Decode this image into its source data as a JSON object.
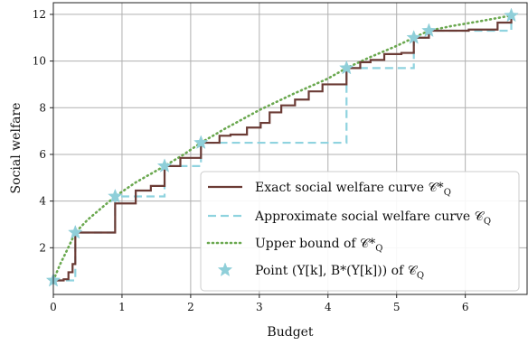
{
  "chart_data": {
    "type": "line",
    "xlabel": "Budget",
    "ylabel": "Social welfare",
    "xlim": [
      0,
      6.9
    ],
    "ylim": [
      0,
      12.5
    ],
    "xticks": [
      0,
      1,
      2,
      3,
      4,
      5,
      6
    ],
    "yticks": [
      2,
      4,
      6,
      8,
      10,
      12
    ],
    "grid": true,
    "legend_position": "bottom-right",
    "series": [
      {
        "name": "Exact social welfare curve 𝒞*",
        "sub": "Q",
        "style": "solid-step",
        "color": "#6b3b35",
        "x": [
          0,
          0.15,
          0.22,
          0.28,
          0.32,
          0.9,
          1.2,
          1.42,
          1.62,
          1.85,
          2.15,
          2.42,
          2.58,
          2.82,
          3.02,
          3.15,
          3.32,
          3.52,
          3.72,
          3.92,
          4.27,
          4.47,
          4.62,
          4.82,
          5.07,
          5.25,
          5.47,
          6.05,
          6.47,
          6.67
        ],
        "y": [
          0.6,
          0.65,
          0.95,
          1.3,
          2.65,
          3.9,
          4.45,
          4.65,
          5.5,
          5.85,
          6.5,
          6.8,
          6.85,
          7.15,
          7.35,
          7.8,
          8.1,
          8.35,
          8.7,
          9.0,
          9.7,
          9.95,
          10.05,
          10.3,
          10.35,
          11.0,
          11.3,
          11.35,
          11.65,
          11.95
        ]
      },
      {
        "name": "Approximate social welfare curve 𝒞",
        "sub": "Q",
        "style": "dashed-step",
        "color": "#8fd3df",
        "x": [
          0,
          0.32,
          0.9,
          1.62,
          2.15,
          4.27,
          5.25,
          5.47,
          6.67
        ],
        "y": [
          0.6,
          2.65,
          4.2,
          5.5,
          6.5,
          9.7,
          11.0,
          11.3,
          11.95
        ]
      },
      {
        "name": "Upper bound of 𝒞*",
        "sub": "Q",
        "style": "dotted",
        "color": "#6aa84f",
        "x": [
          0,
          0.1,
          0.2,
          0.32,
          0.5,
          0.7,
          0.9,
          1.2,
          1.5,
          1.62,
          1.9,
          2.15,
          2.5,
          3.0,
          3.5,
          4.0,
          4.27,
          4.6,
          5.0,
          5.25,
          5.47,
          5.8,
          6.2,
          6.67
        ],
        "y": [
          0.6,
          1.3,
          1.9,
          2.65,
          3.2,
          3.7,
          4.2,
          4.8,
          5.3,
          5.5,
          6.0,
          6.5,
          7.1,
          7.9,
          8.6,
          9.25,
          9.7,
          10.15,
          10.65,
          11.0,
          11.3,
          11.5,
          11.7,
          11.95
        ]
      },
      {
        "name": "Point (Y[k], B*(Y[k])) of 𝒞",
        "sub": "Q",
        "style": "star-marker",
        "color": "#8fcfd9",
        "x": [
          0,
          0.32,
          0.9,
          1.62,
          2.15,
          4.27,
          5.25,
          5.47,
          6.67
        ],
        "y": [
          0.6,
          2.65,
          4.2,
          5.5,
          6.5,
          9.7,
          11.0,
          11.3,
          11.95
        ]
      }
    ]
  }
}
